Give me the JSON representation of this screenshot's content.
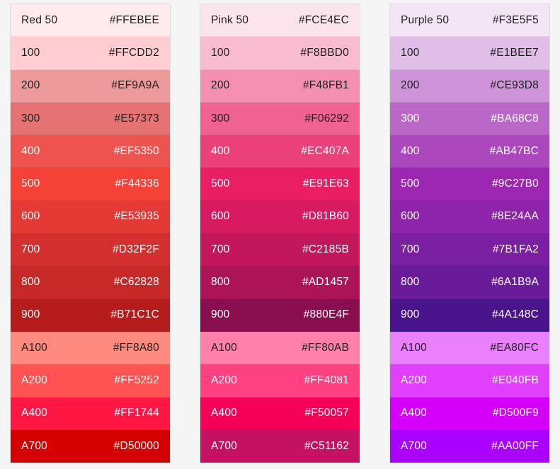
{
  "palettes": [
    {
      "name": "Red",
      "swatches": [
        {
          "shade": "Red 50",
          "hex": "#FFEBEE",
          "color": "#FFEBEE",
          "text": "dark"
        },
        {
          "shade": "100",
          "hex": "#FFCDD2",
          "color": "#FFCDD2",
          "text": "dark"
        },
        {
          "shade": "200",
          "hex": "#EF9A9A",
          "color": "#EF9A9A",
          "text": "dark"
        },
        {
          "shade": "300",
          "hex": "#E57373",
          "color": "#E57373",
          "text": "dark"
        },
        {
          "shade": "400",
          "hex": "#EF5350",
          "color": "#EF5350",
          "text": "light"
        },
        {
          "shade": "500",
          "hex": "#F44336",
          "color": "#F44336",
          "text": "light"
        },
        {
          "shade": "600",
          "hex": "#E53935",
          "color": "#E53935",
          "text": "light"
        },
        {
          "shade": "700",
          "hex": "#D32F2F",
          "color": "#D32F2F",
          "text": "light"
        },
        {
          "shade": "800",
          "hex": "#C62828",
          "color": "#C62828",
          "text": "light"
        },
        {
          "shade": "900",
          "hex": "#B71C1C",
          "color": "#B71C1C",
          "text": "light"
        },
        {
          "shade": "A100",
          "hex": "#FF8A80",
          "color": "#FF8A80",
          "text": "dark"
        },
        {
          "shade": "A200",
          "hex": "#FF5252",
          "color": "#FF5252",
          "text": "light"
        },
        {
          "shade": "A400",
          "hex": "#FF1744",
          "color": "#FF1744",
          "text": "light"
        },
        {
          "shade": "A700",
          "hex": "#D50000",
          "color": "#D50000",
          "text": "light"
        }
      ]
    },
    {
      "name": "Pink",
      "swatches": [
        {
          "shade": "Pink 50",
          "hex": "#FCE4EC",
          "color": "#FCE4EC",
          "text": "dark"
        },
        {
          "shade": "100",
          "hex": "#F8BBD0",
          "color": "#F8BBD0",
          "text": "dark"
        },
        {
          "shade": "200",
          "hex": "#F48FB1",
          "color": "#F48FB1",
          "text": "dark"
        },
        {
          "shade": "300",
          "hex": "#F06292",
          "color": "#F06292",
          "text": "dark"
        },
        {
          "shade": "400",
          "hex": "#EC407A",
          "color": "#EC407A",
          "text": "light"
        },
        {
          "shade": "500",
          "hex": "#E91E63",
          "color": "#E91E63",
          "text": "light"
        },
        {
          "shade": "600",
          "hex": "#D81B60",
          "color": "#D81B60",
          "text": "light"
        },
        {
          "shade": "700",
          "hex": "#C2185B",
          "color": "#C2185B",
          "text": "light"
        },
        {
          "shade": "800",
          "hex": "#AD1457",
          "color": "#AD1457",
          "text": "light"
        },
        {
          "shade": "900",
          "hex": "#880E4F",
          "color": "#880E4F",
          "text": "light"
        },
        {
          "shade": "A100",
          "hex": "#FF80AB",
          "color": "#FF80AB",
          "text": "dark"
        },
        {
          "shade": "A200",
          "hex": "#FF4081",
          "color": "#FF4081",
          "text": "light"
        },
        {
          "shade": "A400",
          "hex": "#F50057",
          "color": "#F50057",
          "text": "light"
        },
        {
          "shade": "A700",
          "hex": "#C51162",
          "color": "#C51162",
          "text": "light"
        }
      ]
    },
    {
      "name": "Purple",
      "swatches": [
        {
          "shade": "Purple 50",
          "hex": "#F3E5F5",
          "color": "#F3E5F5",
          "text": "dark"
        },
        {
          "shade": "100",
          "hex": "#E1BEE7",
          "color": "#E1BEE7",
          "text": "dark"
        },
        {
          "shade": "200",
          "hex": "#CE93D8",
          "color": "#CE93D8",
          "text": "dark"
        },
        {
          "shade": "300",
          "hex": "#BA68C8",
          "color": "#BA68C8",
          "text": "light"
        },
        {
          "shade": "400",
          "hex": "#AB47BC",
          "color": "#AB47BC",
          "text": "light"
        },
        {
          "shade": "500",
          "hex": "#9C27B0",
          "color": "#9C27B0",
          "text": "light"
        },
        {
          "shade": "600",
          "hex": "#8E24AA",
          "color": "#8E24AA",
          "text": "light"
        },
        {
          "shade": "700",
          "hex": "#7B1FA2",
          "color": "#7B1FA2",
          "text": "light"
        },
        {
          "shade": "800",
          "hex": "#6A1B9A",
          "color": "#6A1B9A",
          "text": "light"
        },
        {
          "shade": "900",
          "hex": "#4A148C",
          "color": "#4A148C",
          "text": "light"
        },
        {
          "shade": "A100",
          "hex": "#EA80FC",
          "color": "#EA80FC",
          "text": "dark"
        },
        {
          "shade": "A200",
          "hex": "#E040FB",
          "color": "#E040FB",
          "text": "light"
        },
        {
          "shade": "A400",
          "hex": "#D500F9",
          "color": "#D500F9",
          "text": "light"
        },
        {
          "shade": "A700",
          "hex": "#AA00FF",
          "color": "#AA00FF",
          "text": "light"
        }
      ]
    }
  ]
}
